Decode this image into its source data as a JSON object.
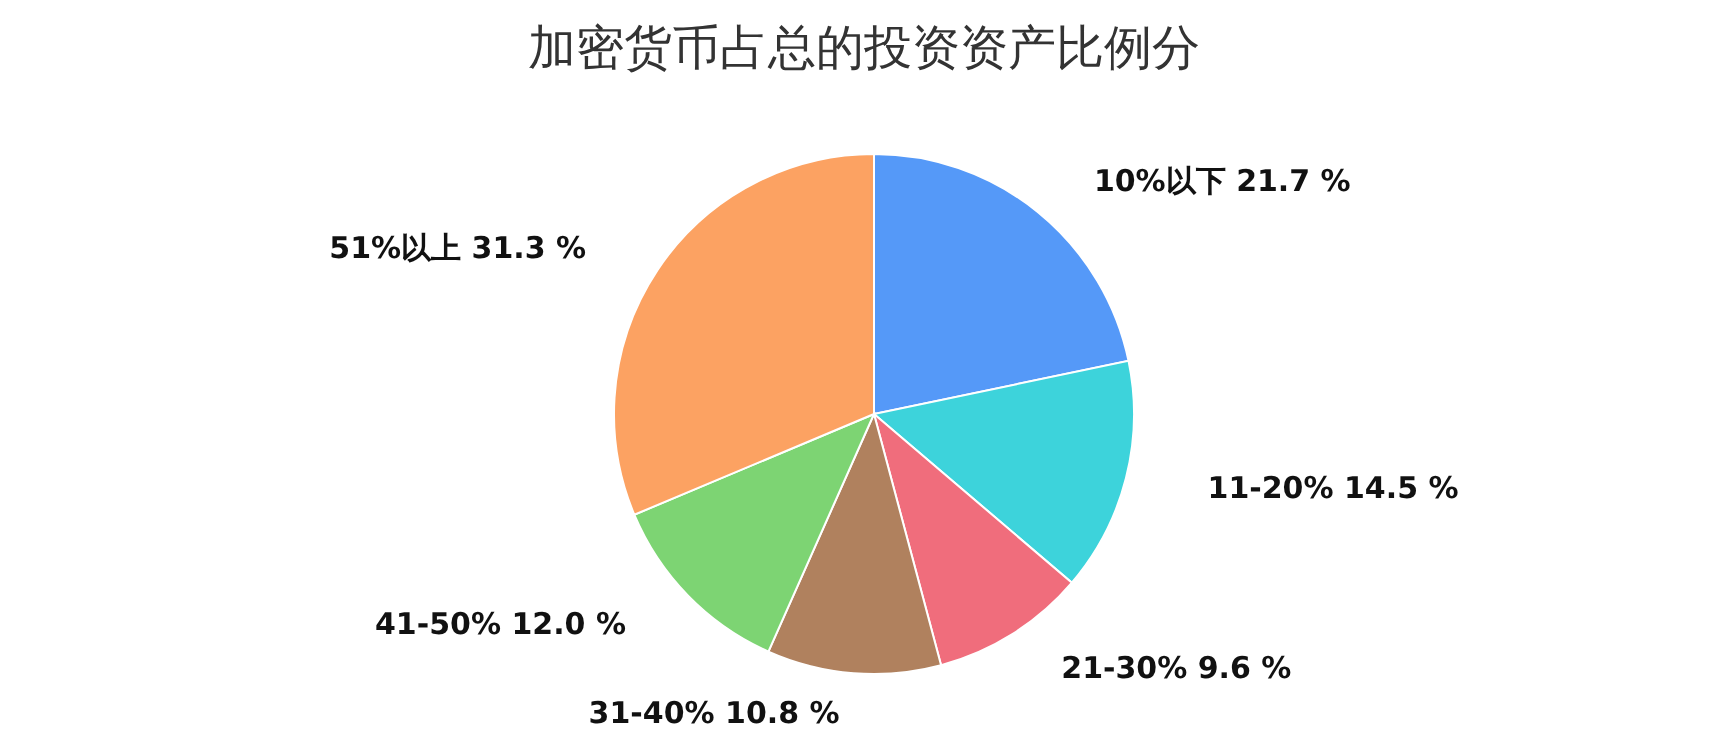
{
  "chart_data": {
    "type": "pie",
    "title": "加密货币占总的投资资产比例分",
    "categories": [
      "10%以下",
      "11-20%",
      "21-30%",
      "31-40%",
      "41-50%",
      "51%以上"
    ],
    "values": [
      21.7,
      14.5,
      9.6,
      10.8,
      12.0,
      31.3
    ],
    "value_labels": [
      "21.7 %",
      "14.5 %",
      "9.6 %",
      "10.8 %",
      "12.0 %",
      "31.3 %"
    ],
    "colors": [
      "#5599f8",
      "#3dd3db",
      "#f06d7c",
      "#b0815e",
      "#7dd473",
      "#fca262"
    ]
  }
}
